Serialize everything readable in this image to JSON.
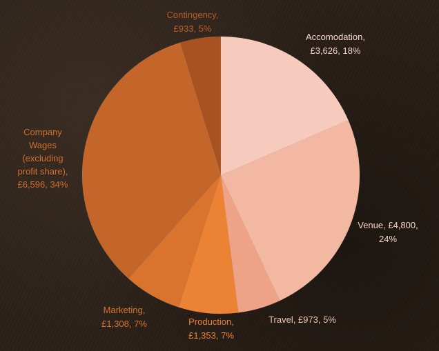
{
  "chart_data": {
    "type": "pie",
    "slices": [
      {
        "label_lines": [
          "Accomodation,",
          "£3,626, 18%"
        ],
        "value": 3626,
        "percent": 18,
        "color": "#f6cbbd",
        "label_color": "#f6d6ca"
      },
      {
        "label_lines": [
          "Venue, £4,800,",
          "24%"
        ],
        "value": 4800,
        "percent": 24,
        "color": "#f2b8a2",
        "label_color": "#f6d6ca"
      },
      {
        "label_lines": [
          "Travel, £973, 5%"
        ],
        "value": 973,
        "percent": 5,
        "color": "#eea386",
        "label_color": "#f3c6b2"
      },
      {
        "label_lines": [
          "Production,",
          "£1,353, 7%"
        ],
        "value": 1353,
        "percent": 7,
        "color": "#ec8234",
        "label_color": "#ec8234"
      },
      {
        "label_lines": [
          "Marketing,",
          "£1,308, 7%"
        ],
        "value": 1308,
        "percent": 7,
        "color": "#d9732e",
        "label_color": "#d9732e"
      },
      {
        "label_lines": [
          "Company",
          "Wages",
          "(excluding",
          "profit share),",
          "£6,596, 34%"
        ],
        "value": 6596,
        "percent": 34,
        "color": "#c4652a",
        "label_color": "#cf6f2f"
      },
      {
        "label_lines": [
          "Contingency,",
          "£933, 5%"
        ],
        "value": 933,
        "percent": 5,
        "color": "#a85222",
        "label_color": "#b85e28"
      }
    ],
    "title": "",
    "legend": "none"
  }
}
